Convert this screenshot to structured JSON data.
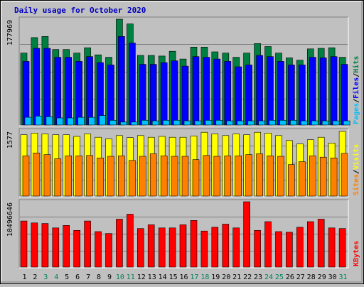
{
  "chart_data": {
    "type": "bar",
    "title": "Daily usage for October 2020",
    "categories": [
      "1",
      "2",
      "3",
      "4",
      "5",
      "6",
      "7",
      "8",
      "9",
      "10",
      "11",
      "12",
      "13",
      "14",
      "15",
      "16",
      "17",
      "18",
      "19",
      "20",
      "21",
      "22",
      "23",
      "24",
      "25",
      "26",
      "27",
      "28",
      "29",
      "30",
      "31"
    ],
    "weekend_days": [
      "3",
      "4",
      "10",
      "11",
      "17",
      "18",
      "24",
      "25",
      "31"
    ],
    "panels": [
      {
        "id": "hits",
        "scale_label": "177969",
        "ymax": 177969,
        "legend": [
          "Pages",
          "/",
          "Files",
          "/",
          "Hits"
        ],
        "series": [
          {
            "name": "Hits",
            "color": "#008040",
            "values": [
              121000,
              147000,
              149000,
              127000,
              127000,
              121000,
              130000,
              118000,
              114000,
              177969,
              170000,
              117000,
              117000,
              116000,
              124000,
              111000,
              131000,
              131000,
              123000,
              121000,
              114000,
              121000,
              137000,
              132000,
              121000,
              113000,
              109000,
              128000,
              129000,
              130000,
              114000
            ]
          },
          {
            "name": "Files",
            "color": "#0000ff",
            "values": [
              107000,
              129000,
              129000,
              114000,
              114000,
              107000,
              115000,
              105000,
              101000,
              149000,
              138000,
              102000,
              102000,
              105000,
              108000,
              99000,
              115000,
              114000,
              111000,
              107000,
              98000,
              101000,
              117000,
              115000,
              107000,
              101000,
              101000,
              114000,
              113000,
              115000,
              102000
            ]
          },
          {
            "name": "Pages",
            "color": "#00c0ff",
            "values": [
              13000,
              15000,
              14000,
              12000,
              12000,
              13000,
              13000,
              16000,
              8000,
              5000,
              5000,
              8000,
              7000,
              8000,
              8000,
              7000,
              7000,
              8000,
              8000,
              7000,
              7000,
              7000,
              7000,
              8000,
              8000,
              8000,
              7000,
              7000,
              7000,
              7000,
              7000
            ]
          }
        ]
      },
      {
        "id": "visits",
        "scale_label": "1577",
        "ymax": 1577,
        "legend": [
          "Sites",
          "/",
          "Visits"
        ],
        "series": [
          {
            "name": "Visits",
            "color": "#ffff00",
            "values": [
              1480,
              1520,
              1500,
              1480,
              1480,
              1440,
              1500,
              1420,
              1380,
              1460,
              1410,
              1460,
              1420,
              1440,
              1420,
              1420,
              1450,
              1540,
              1500,
              1460,
              1500,
              1480,
              1540,
              1520,
              1460,
              1340,
              1260,
              1360,
              1420,
              1280,
              1560
            ]
          },
          {
            "name": "Sites",
            "color": "#ff8000",
            "values": [
              970,
              1040,
              1000,
              900,
              970,
              970,
              980,
              920,
              960,
              970,
              860,
              960,
              1020,
              970,
              960,
              960,
              880,
              980,
              960,
              970,
              970,
              1000,
              1020,
              970,
              960,
              760,
              830,
              970,
              940,
              920,
              1030
            ]
          }
        ]
      },
      {
        "id": "kbytes",
        "scale_label": "10496646",
        "ymax": 10496646,
        "legend": [
          "KBytes"
        ],
        "series": [
          {
            "name": "KBytes",
            "color": "#ff0000",
            "values": [
              7400000,
              7100000,
              7000000,
              6300000,
              6700000,
              5900000,
              7400000,
              5700000,
              5400000,
              7700000,
              8500000,
              6200000,
              6800000,
              6300000,
              6300000,
              6800000,
              7500000,
              5800000,
              6400000,
              6900000,
              6300000,
              10496646,
              5900000,
              7300000,
              5700000,
              5600000,
              6400000,
              7300000,
              7700000,
              6300000,
              6200000
            ]
          }
        ]
      }
    ]
  }
}
